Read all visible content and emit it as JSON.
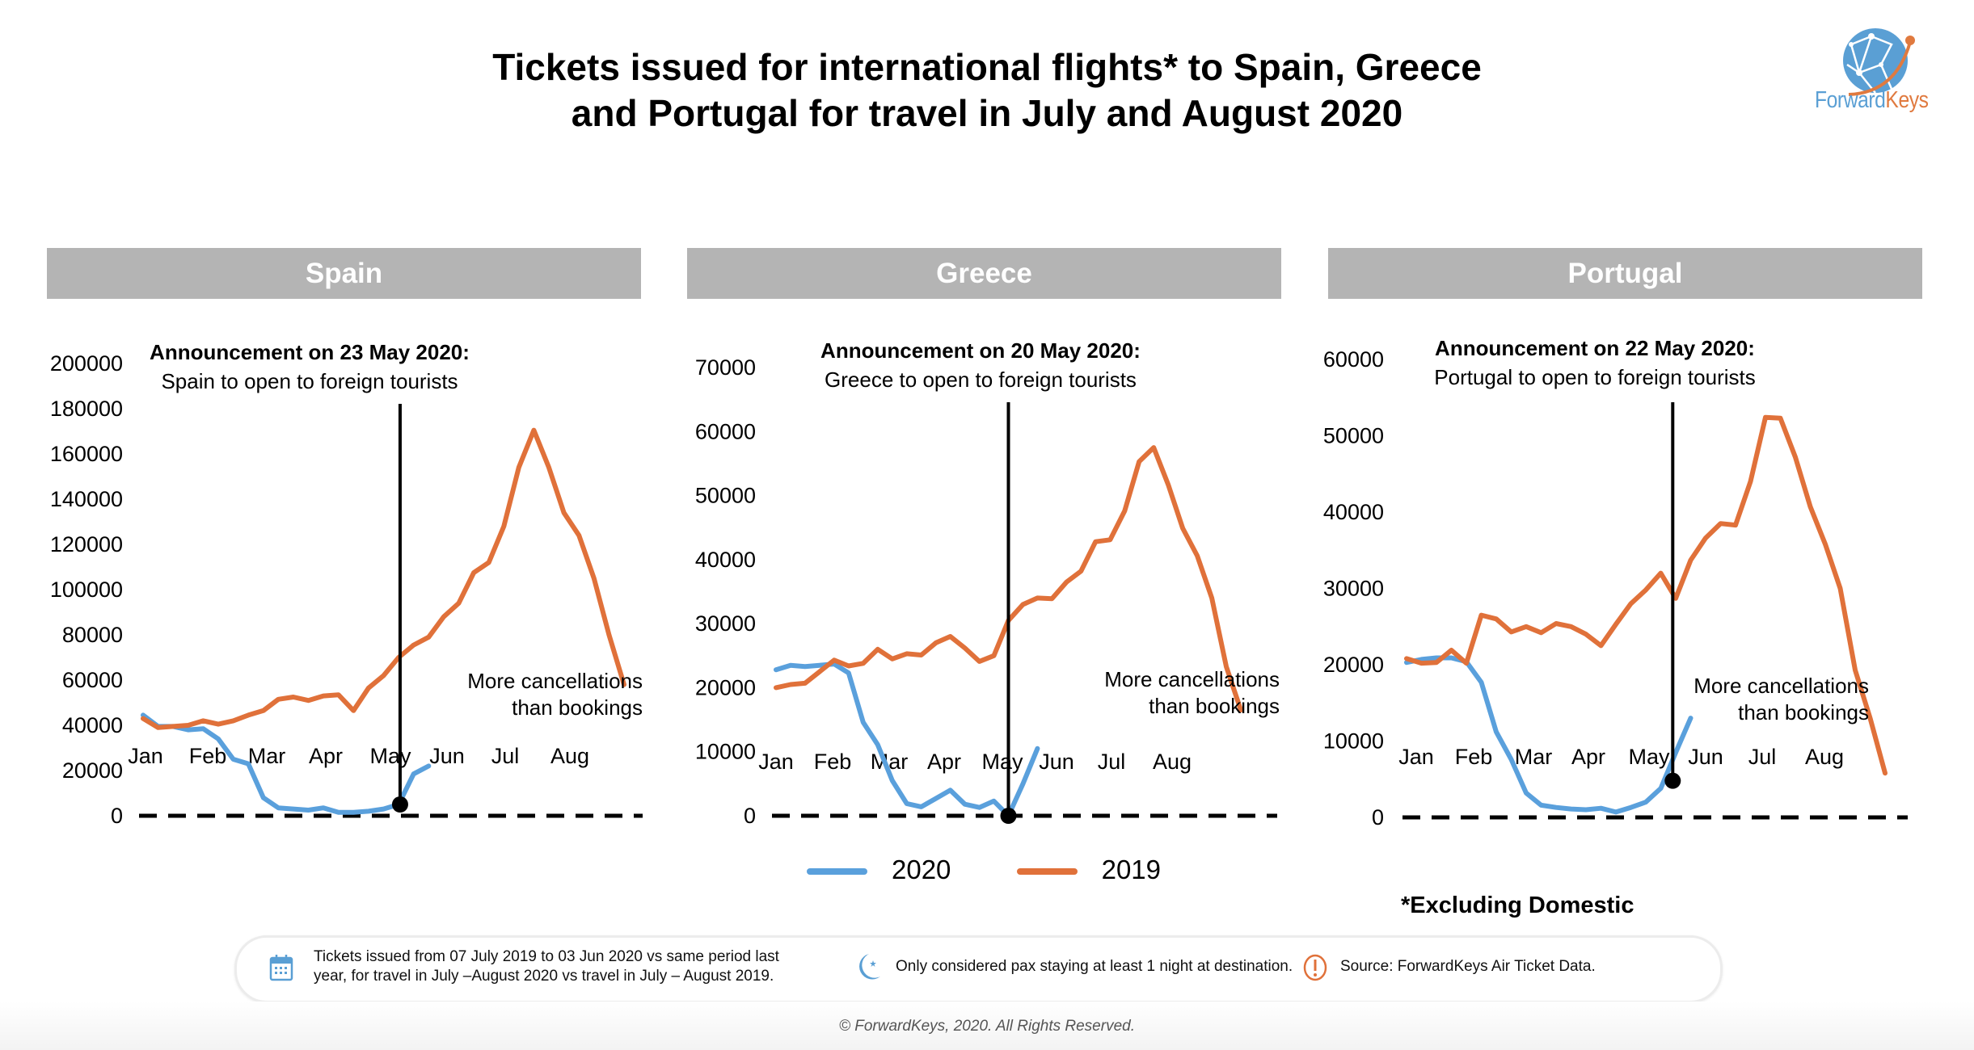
{
  "title": {
    "line1": "Tickets issued for international flights* to Spain, Greece",
    "line2": "and Portugal for travel in July and August 2020"
  },
  "logo": {
    "part1": "Forward",
    "part2": "Keys",
    "icon": "globe-icon"
  },
  "colors": {
    "series_2020": "#5aa0dc",
    "series_2019": "#e0713a",
    "panel_header": "#b4b4b4"
  },
  "legend": [
    {
      "label": "2020",
      "color": "#5aa0dc"
    },
    {
      "label": "2019",
      "color": "#e0713a"
    }
  ],
  "footnote": "*Excluding Domestic",
  "notes": [
    {
      "icon": "calendar-icon",
      "text_line1": "Tickets issued from 07 July 2019 to 03 Jun 2020 vs same period last",
      "text_line2": "year, for travel in July –August 2020 vs travel in July – August 2019."
    },
    {
      "icon": "moon-icon",
      "text": "Only considered pax staying at least 1 night at destination."
    },
    {
      "icon": "alert-icon",
      "text": "Source: ForwardKeys Air Ticket Data."
    }
  ],
  "copyright": "© ForwardKeys, 2020. All Rights Reserved.",
  "chart_data": [
    {
      "type": "line",
      "title": "Spain",
      "annotation_title": "Announcement on 23 May 2020:",
      "annotation_text": "Spain to open to foreign tourists",
      "zero_line_note_line1": "More cancellations",
      "zero_line_note_line2": "than bookings",
      "categories": [
        "Jan",
        "Feb",
        "Mar",
        "Apr",
        "May",
        "Jun",
        "Jul",
        "Aug"
      ],
      "ylim": [
        0,
        200000
      ],
      "yticks": [
        0,
        20000,
        40000,
        60000,
        80000,
        100000,
        120000,
        140000,
        160000,
        180000,
        200000
      ],
      "announcement_index": 17.1,
      "announcement_value": 5000,
      "series": [
        {
          "name": "2020",
          "values": [
            44500,
            39500,
            39500,
            38000,
            38500,
            34000,
            25000,
            23000,
            8000,
            3500,
            3000,
            2500,
            3500,
            1500,
            1500,
            2000,
            3000,
            5000,
            18500,
            22000
          ]
        },
        {
          "name": "2019",
          "values": [
            43000,
            39000,
            39500,
            40000,
            42000,
            40500,
            42000,
            44500,
            46500,
            51500,
            52500,
            51000,
            53000,
            53500,
            46500,
            56500,
            62000,
            70000,
            75500,
            79000,
            88000,
            94000,
            107500,
            112000,
            128000,
            154000,
            170500,
            154000,
            134000,
            124000,
            105000,
            80000,
            58000
          ]
        }
      ]
    },
    {
      "type": "line",
      "title": "Greece",
      "annotation_title": "Announcement on 20 May 2020:",
      "annotation_text": "Greece to open to foreign tourists",
      "zero_line_note_line1": "More cancellations",
      "zero_line_note_line2": "than bookings",
      "categories": [
        "Jan",
        "Feb",
        "Mar",
        "Apr",
        "May",
        "Jun",
        "Jul",
        "Aug"
      ],
      "ylim": [
        0,
        70000
      ],
      "yticks": [
        0,
        10000,
        20000,
        30000,
        40000,
        50000,
        60000,
        70000
      ],
      "announcement_index": 16,
      "announcement_value": 0,
      "series": [
        {
          "name": "2020",
          "values": [
            22800,
            23500,
            23300,
            23500,
            23700,
            22300,
            14600,
            11100,
            5500,
            1900,
            1400,
            2700,
            4000,
            1800,
            1300,
            2300,
            0,
            5000,
            10500
          ]
        },
        {
          "name": "2019",
          "values": [
            20000,
            20500,
            20700,
            22500,
            24300,
            23400,
            23800,
            26000,
            24500,
            25300,
            25100,
            27000,
            28000,
            26200,
            24100,
            25000,
            30500,
            33000,
            34000,
            33900,
            36500,
            38200,
            42800,
            43100,
            47600,
            55300,
            57500,
            51700,
            44900,
            40600,
            34000,
            23300,
            16500
          ]
        }
      ]
    },
    {
      "type": "line",
      "title": "Portugal",
      "annotation_title": "Announcement on 22 May 2020:",
      "annotation_text": "Portugal to open to foreign tourists",
      "zero_line_note_line1": "More cancellations",
      "zero_line_note_line2": "than bookings",
      "categories": [
        "Jan",
        "Feb",
        "Mar",
        "Apr",
        "May",
        "Jun",
        "Jul",
        "Aug"
      ],
      "ylim": [
        0,
        60000
      ],
      "yticks": [
        0,
        10000,
        20000,
        30000,
        40000,
        50000,
        60000
      ],
      "announcement_index": 17.8,
      "announcement_value": 4800,
      "series": [
        {
          "name": "2020",
          "values": [
            20300,
            20700,
            20900,
            20900,
            20400,
            17700,
            11200,
            7600,
            3200,
            1600,
            1300,
            1100,
            1000,
            1200,
            700,
            1300,
            2000,
            3800,
            8500,
            13000
          ]
        },
        {
          "name": "2019",
          "values": [
            20800,
            20200,
            20300,
            21900,
            20200,
            26500,
            26000,
            24300,
            25000,
            24200,
            25400,
            25000,
            24000,
            22500,
            25300,
            28000,
            29800,
            32000,
            28700,
            33700,
            36600,
            38500,
            38300,
            44000,
            52400,
            52300,
            47200,
            40700,
            35800,
            30000,
            19300,
            13000,
            5800
          ]
        }
      ]
    }
  ]
}
